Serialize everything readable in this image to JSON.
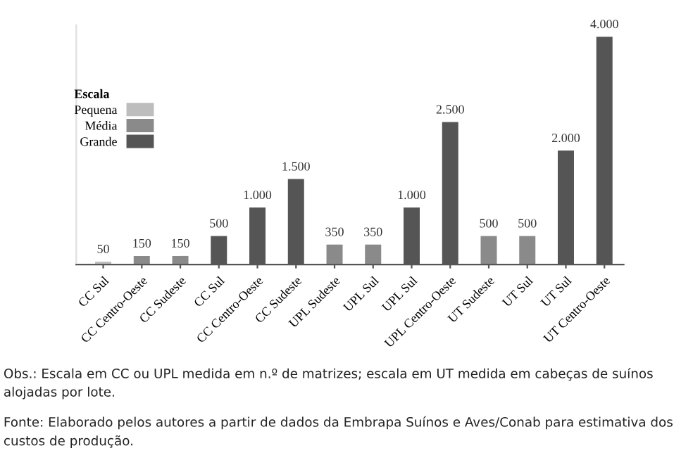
{
  "chart_data": {
    "type": "bar",
    "categories": [
      "CC Sul",
      "CC Centro-Oeste",
      "CC Sudeste",
      "CC Sul",
      "CC Centro-Oeste",
      "CC Sudeste",
      "UPL Sudeste",
      "UPL Sul",
      "UPL Sul",
      "UPL Centro-Oeste",
      "UT Sudeste",
      "UT Sul",
      "UT Sul",
      "UT Centro-Oeste"
    ],
    "series": [
      {
        "name": "Pequena",
        "color": "#bdbdbd",
        "values": [
          50,
          null,
          null,
          null,
          null,
          null,
          null,
          null,
          null,
          null,
          null,
          null,
          null,
          null
        ],
        "value_labels": [
          "50",
          null,
          null,
          null,
          null,
          null,
          null,
          null,
          null,
          null,
          null,
          null,
          null,
          null
        ]
      },
      {
        "name": "Média",
        "color": "#8a8a8a",
        "values": [
          null,
          150,
          150,
          null,
          null,
          null,
          350,
          350,
          null,
          null,
          500,
          500,
          null,
          null
        ],
        "value_labels": [
          null,
          "150",
          "150",
          null,
          null,
          null,
          "350",
          "350",
          null,
          null,
          "500",
          "500",
          null,
          null
        ]
      },
      {
        "name": "Grande",
        "color": "#555555",
        "values": [
          null,
          null,
          null,
          500,
          1000,
          1500,
          null,
          null,
          1000,
          2500,
          null,
          null,
          2000,
          4000
        ],
        "value_labels": [
          null,
          null,
          null,
          "500",
          "1.000",
          "1.500",
          null,
          null,
          "1.000",
          "2.500",
          null,
          null,
          "2.000",
          "4.000"
        ]
      }
    ],
    "legend": "top left",
    "legend_title": "Escala",
    "annotations": [
      "Obs.: Escala em CC ou UPL medida em n.º de matrizes; escala em UT medida em cabeças de suínos alojadas por lote.",
      "Fonte: Elaborado pelos autores a partir de dados da Embrapa Suínos e Aves/Conab para estimativa dos custos de produção."
    ]
  }
}
